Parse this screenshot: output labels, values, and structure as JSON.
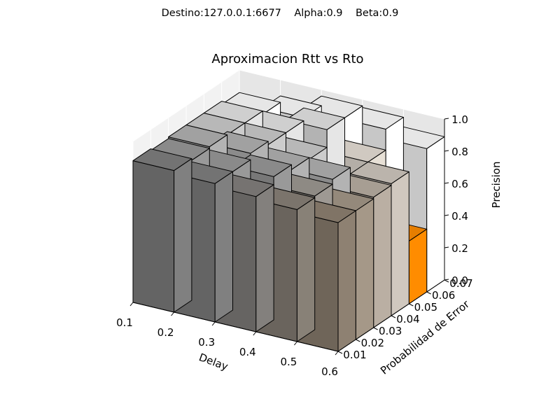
{
  "figure": {
    "suptitle": "Destino:127.0.0.1:6677    Alpha:0.9    Beta:0.9"
  },
  "chart_data": {
    "type": "bar3d",
    "title": "Aproximacion Rtt vs Rto",
    "xlabel": "Delay",
    "ylabel": "Probabilidad de Error",
    "zlabel": "Precision",
    "x_ticks": [
      "0.1",
      "0.2",
      "0.3",
      "0.4",
      "0.5",
      "0.6"
    ],
    "y_ticks": [
      "0.01",
      "0.02",
      "0.03",
      "0.04",
      "0.05",
      "0.06",
      "0.07"
    ],
    "z_ticks": [
      "0.0",
      "0.2",
      "0.4",
      "0.6",
      "0.8",
      "1.0"
    ],
    "xlim": [
      0.1,
      0.6
    ],
    "ylim": [
      0.01,
      0.07
    ],
    "zlim": [
      0.0,
      1.0
    ],
    "grid": true,
    "delays": [
      0.1,
      0.2,
      0.3,
      0.4,
      0.5
    ],
    "error_probabilities": [
      0.01,
      0.02,
      0.03,
      0.04,
      0.05,
      0.06
    ],
    "values": [
      [
        0.88,
        0.87,
        0.88,
        0.88,
        0.88,
        0.86
      ],
      [
        0.86,
        0.86,
        0.9,
        0.88,
        0.88,
        0.9
      ],
      [
        0.84,
        0.89,
        0.86,
        0.85,
        0.96,
        0.96
      ],
      [
        0.82,
        0.83,
        0.86,
        0.6,
        0.82,
        0.95
      ],
      [
        0.8,
        0.8,
        0.81,
        0.82,
        0.39,
        0.89
      ]
    ],
    "colors": {
      "low": "#ff8c00",
      "high_dark": "#808080",
      "high_light": "#ffffff"
    }
  }
}
